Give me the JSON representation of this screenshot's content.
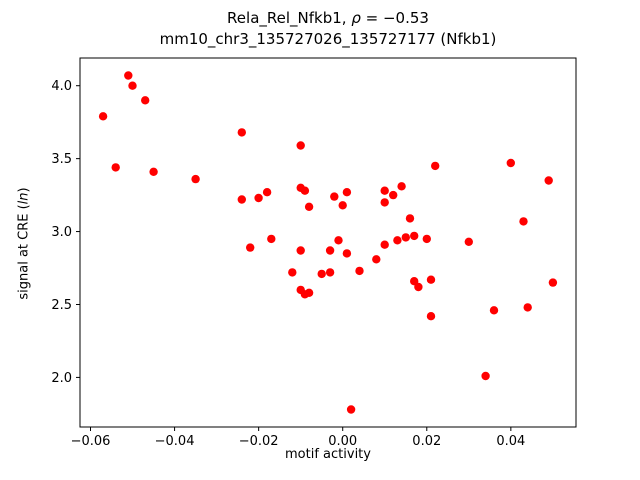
{
  "title": {
    "prefix": "Rela_Rel_Nfkb1, ",
    "rho": "ρ",
    "rest": " = −0.53",
    "line2": "mm10_chr3_135727026_135727177 (Nfkb1)"
  },
  "axis": {
    "xlabel": "motif activity",
    "ylabel_prefix": "signal at CRE (",
    "ylabel_italic": "ln",
    "ylabel_suffix": ")"
  },
  "chart_data": {
    "type": "scatter",
    "title": "Rela_Rel_Nfkb1, ρ = −0.53",
    "subtitle": "mm10_chr3_135727026_135727177 (Nfkb1)",
    "xlabel": "motif activity",
    "ylabel": "signal at CRE (ln)",
    "marker_color": "#ff0000",
    "marker_shape": "circle",
    "grid": false,
    "legend": null,
    "xlim": [
      -0.0625,
      0.0555
    ],
    "ylim": [
      1.66,
      4.19
    ],
    "xticks": [
      -0.06,
      -0.04,
      -0.02,
      0.0,
      0.02,
      0.04
    ],
    "xtick_labels": [
      "−0.06",
      "−0.04",
      "−0.02",
      "0.00",
      "0.02",
      "0.04"
    ],
    "yticks": [
      2.0,
      2.5,
      3.0,
      3.5,
      4.0
    ],
    "ytick_labels": [
      "2.0",
      "2.5",
      "3.0",
      "3.5",
      "4.0"
    ],
    "points": [
      [
        -0.057,
        3.79
      ],
      [
        -0.054,
        3.44
      ],
      [
        -0.051,
        4.07
      ],
      [
        -0.05,
        4.0
      ],
      [
        -0.047,
        3.9
      ],
      [
        -0.045,
        3.41
      ],
      [
        -0.035,
        3.36
      ],
      [
        -0.024,
        3.68
      ],
      [
        -0.024,
        3.22
      ],
      [
        -0.022,
        2.89
      ],
      [
        -0.02,
        3.23
      ],
      [
        -0.018,
        3.27
      ],
      [
        -0.017,
        2.95
      ],
      [
        -0.012,
        2.72
      ],
      [
        -0.01,
        3.59
      ],
      [
        -0.01,
        3.3
      ],
      [
        -0.009,
        3.28
      ],
      [
        -0.01,
        2.87
      ],
      [
        -0.01,
        2.6
      ],
      [
        -0.009,
        2.57
      ],
      [
        -0.008,
        3.17
      ],
      [
        -0.008,
        2.58
      ],
      [
        -0.005,
        2.71
      ],
      [
        -0.003,
        2.87
      ],
      [
        -0.003,
        2.72
      ],
      [
        -0.002,
        3.24
      ],
      [
        -0.001,
        2.94
      ],
      [
        0.0,
        3.18
      ],
      [
        0.001,
        3.27
      ],
      [
        0.001,
        2.85
      ],
      [
        0.002,
        1.78
      ],
      [
        0.004,
        2.73
      ],
      [
        0.008,
        2.81
      ],
      [
        0.01,
        3.28
      ],
      [
        0.01,
        3.2
      ],
      [
        0.01,
        2.91
      ],
      [
        0.012,
        3.25
      ],
      [
        0.013,
        2.94
      ],
      [
        0.014,
        3.31
      ],
      [
        0.015,
        2.96
      ],
      [
        0.016,
        3.09
      ],
      [
        0.017,
        2.97
      ],
      [
        0.017,
        2.66
      ],
      [
        0.018,
        2.62
      ],
      [
        0.02,
        2.95
      ],
      [
        0.021,
        2.67
      ],
      [
        0.021,
        2.42
      ],
      [
        0.022,
        3.45
      ],
      [
        0.03,
        2.93
      ],
      [
        0.034,
        2.01
      ],
      [
        0.036,
        2.46
      ],
      [
        0.04,
        3.47
      ],
      [
        0.043,
        3.07
      ],
      [
        0.044,
        2.48
      ],
      [
        0.049,
        3.35
      ],
      [
        0.05,
        2.65
      ]
    ]
  }
}
